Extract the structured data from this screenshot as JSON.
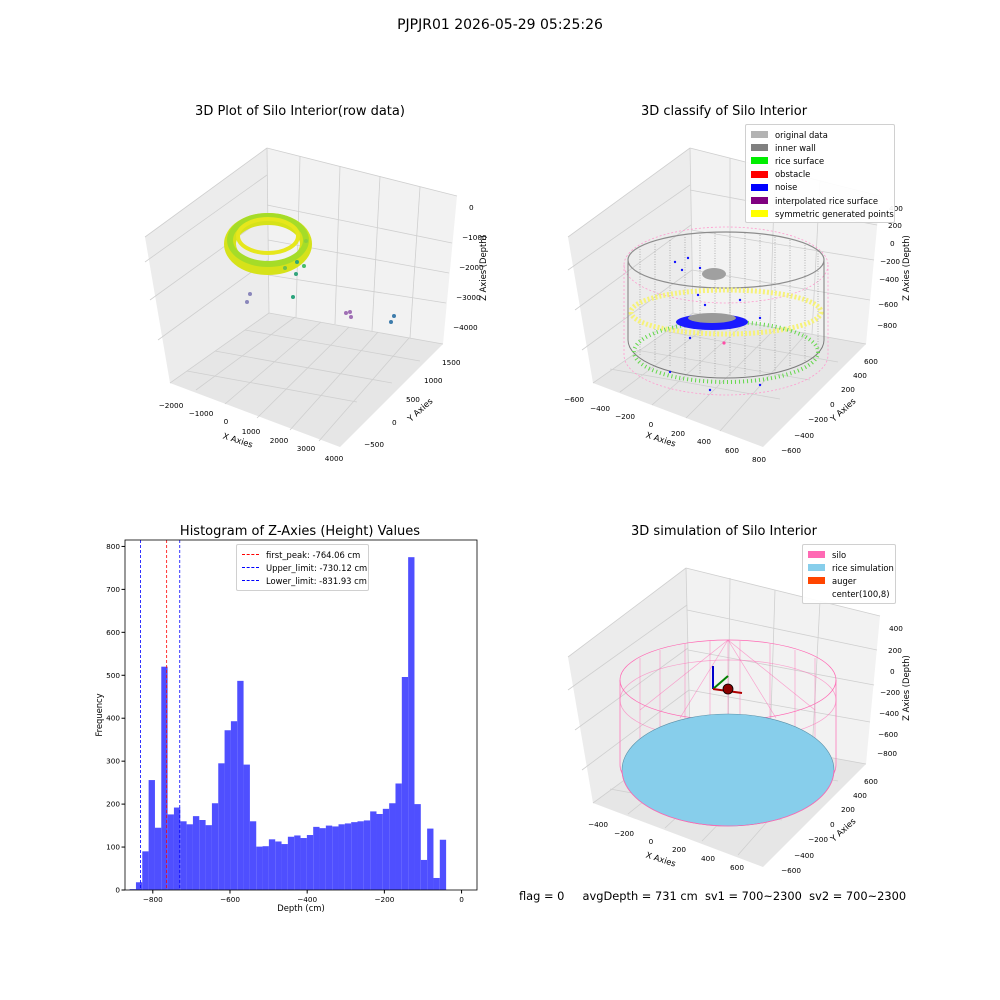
{
  "suptitle": "PJPJR01 2026-05-29 05:25:26",
  "panels": {
    "raw": {
      "title": "3D Plot of Silo Interior(row data)",
      "xlabel": "X Axies",
      "ylabel": "Y Axies",
      "zlabel": "Z Axies (Depth)",
      "xticks": [
        "−2000",
        "−1000",
        "0",
        "1000",
        "2000",
        "3000",
        "4000"
      ],
      "yticks": [
        "−500",
        "0",
        "500",
        "1000",
        "1500"
      ],
      "zticks": [
        "0",
        "−1000",
        "−2000",
        "−3000",
        "−4000"
      ]
    },
    "classify": {
      "title": "3D classify of Silo Interior",
      "xlabel": "X Axies",
      "ylabel": "Y Axies",
      "zlabel": "Z Axies (Depth)",
      "xticks": [
        "−600",
        "−400",
        "−200",
        "0",
        "200",
        "400",
        "600",
        "800"
      ],
      "yticks": [
        "−600",
        "−400",
        "−200",
        "0",
        "200",
        "400",
        "600"
      ],
      "zticks": [
        "400",
        "200",
        "0",
        "−200",
        "−400",
        "−600",
        "−800"
      ],
      "legend": [
        {
          "label": "original data",
          "color": "#b3b3b3"
        },
        {
          "label": "inner wall",
          "color": "#808080"
        },
        {
          "label": "rice surface",
          "color": "#00ee00"
        },
        {
          "label": "obstacle",
          "color": "#ff0000"
        },
        {
          "label": "noise",
          "color": "#0000ff"
        },
        {
          "label": "interpolated rice surface",
          "color": "#800080"
        },
        {
          "label": "symmetric generated points",
          "color": "#ffff00"
        }
      ]
    },
    "simulation": {
      "title": "3D simulation of Silo Interior",
      "xlabel": "X Axies",
      "ylabel": "Y Axies",
      "zlabel": "Z Axies (Depth)",
      "xticks": [
        "−400",
        "−200",
        "0",
        "200",
        "400",
        "600"
      ],
      "yticks": [
        "−600",
        "−400",
        "−200",
        "0",
        "200",
        "400",
        "600"
      ],
      "zticks": [
        "400",
        "200",
        "0",
        "−200",
        "−400",
        "−600",
        "−800"
      ],
      "legend": [
        {
          "label": "silo",
          "color": "#ff69b4"
        },
        {
          "label": "rice simulation",
          "color": "#87ceeb"
        },
        {
          "label": "auger",
          "color": "#ff4500"
        },
        {
          "label": "center(100,8)",
          "color": "#ffffff"
        }
      ]
    }
  },
  "footer": {
    "flag": "flag = 0",
    "avg": "avgDepth = 731 cm",
    "sv1": "sv1 = 700~2300",
    "sv2": "sv2 = 700~2300"
  },
  "chart_data": {
    "type": "bar",
    "title": "Histogram of Z-Axies (Height) Values",
    "xlabel": "Depth (cm)",
    "ylabel": "Frequency",
    "xlim": [
      -872,
      40
    ],
    "ylim": [
      0,
      815
    ],
    "xticks": [
      -800,
      -600,
      -400,
      -200,
      0
    ],
    "yticks": [
      0,
      100,
      200,
      300,
      400,
      500,
      600,
      700,
      800
    ],
    "bin_start": -860,
    "bin_width": 16.4,
    "color": "#4b4bff",
    "values": [
      2,
      18,
      90,
      256,
      145,
      520,
      176,
      192,
      160,
      153,
      172,
      163,
      151,
      202,
      295,
      372,
      393,
      487,
      292,
      160,
      101,
      102,
      118,
      113,
      107,
      124,
      127,
      121,
      128,
      147,
      144,
      150,
      148,
      153,
      155,
      158,
      160,
      162,
      183,
      177,
      189,
      202,
      248,
      496,
      775,
      200,
      70,
      143,
      28,
      117
    ],
    "vlines": [
      {
        "label": "first_peak: -764.06 cm",
        "x": -764.06,
        "color": "#ff0000"
      },
      {
        "label": "Upper_limit: -730.12 cm",
        "x": -730.12,
        "color": "#0000ff"
      },
      {
        "label": "Lower_limit: -831.93 cm",
        "x": -831.93,
        "color": "#0000ff"
      }
    ]
  }
}
